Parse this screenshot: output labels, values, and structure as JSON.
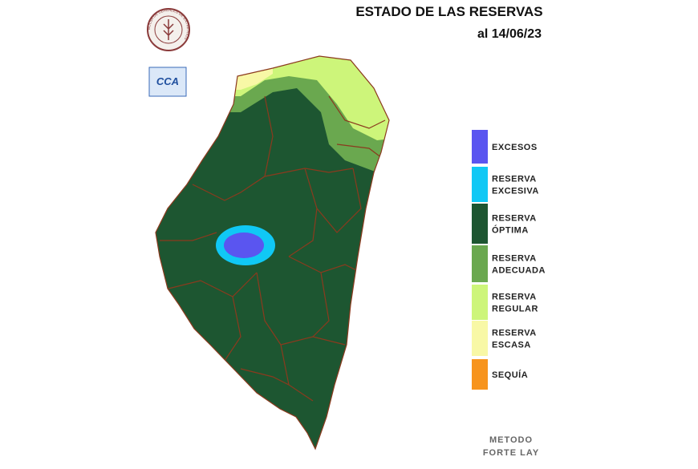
{
  "header": {
    "title": "ESTADO DE LAS RESERVAS",
    "date": "al 14/06/23"
  },
  "logos": {
    "ring_text": "BOLSA DE CEREALES DE ENTRE RIOS",
    "badge": "CCA"
  },
  "legend": [
    {
      "color": "#5a55f0",
      "lines": [
        "EXCESOS"
      ]
    },
    {
      "color": "#10c8f5",
      "lines": [
        "RESERVA",
        "EXCESIVA"
      ]
    },
    {
      "color": "#1d5631",
      "lines": [
        "RESERVA",
        "ÓPTIMA"
      ]
    },
    {
      "color": "#6aa84f",
      "lines": [
        "RESERVA",
        "ADECUADA"
      ]
    },
    {
      "color": "#cdf57a",
      "lines": [
        "RESERVA",
        "REGULAR"
      ]
    },
    {
      "color": "#f8f8a6",
      "lines": [
        "RESERVA",
        "ESCASA"
      ]
    },
    {
      "color": "#f7941d",
      "lines": [
        "SEQUÍA"
      ]
    }
  ],
  "footer": {
    "lines": [
      "METODO",
      "FORTE LAY"
    ]
  }
}
